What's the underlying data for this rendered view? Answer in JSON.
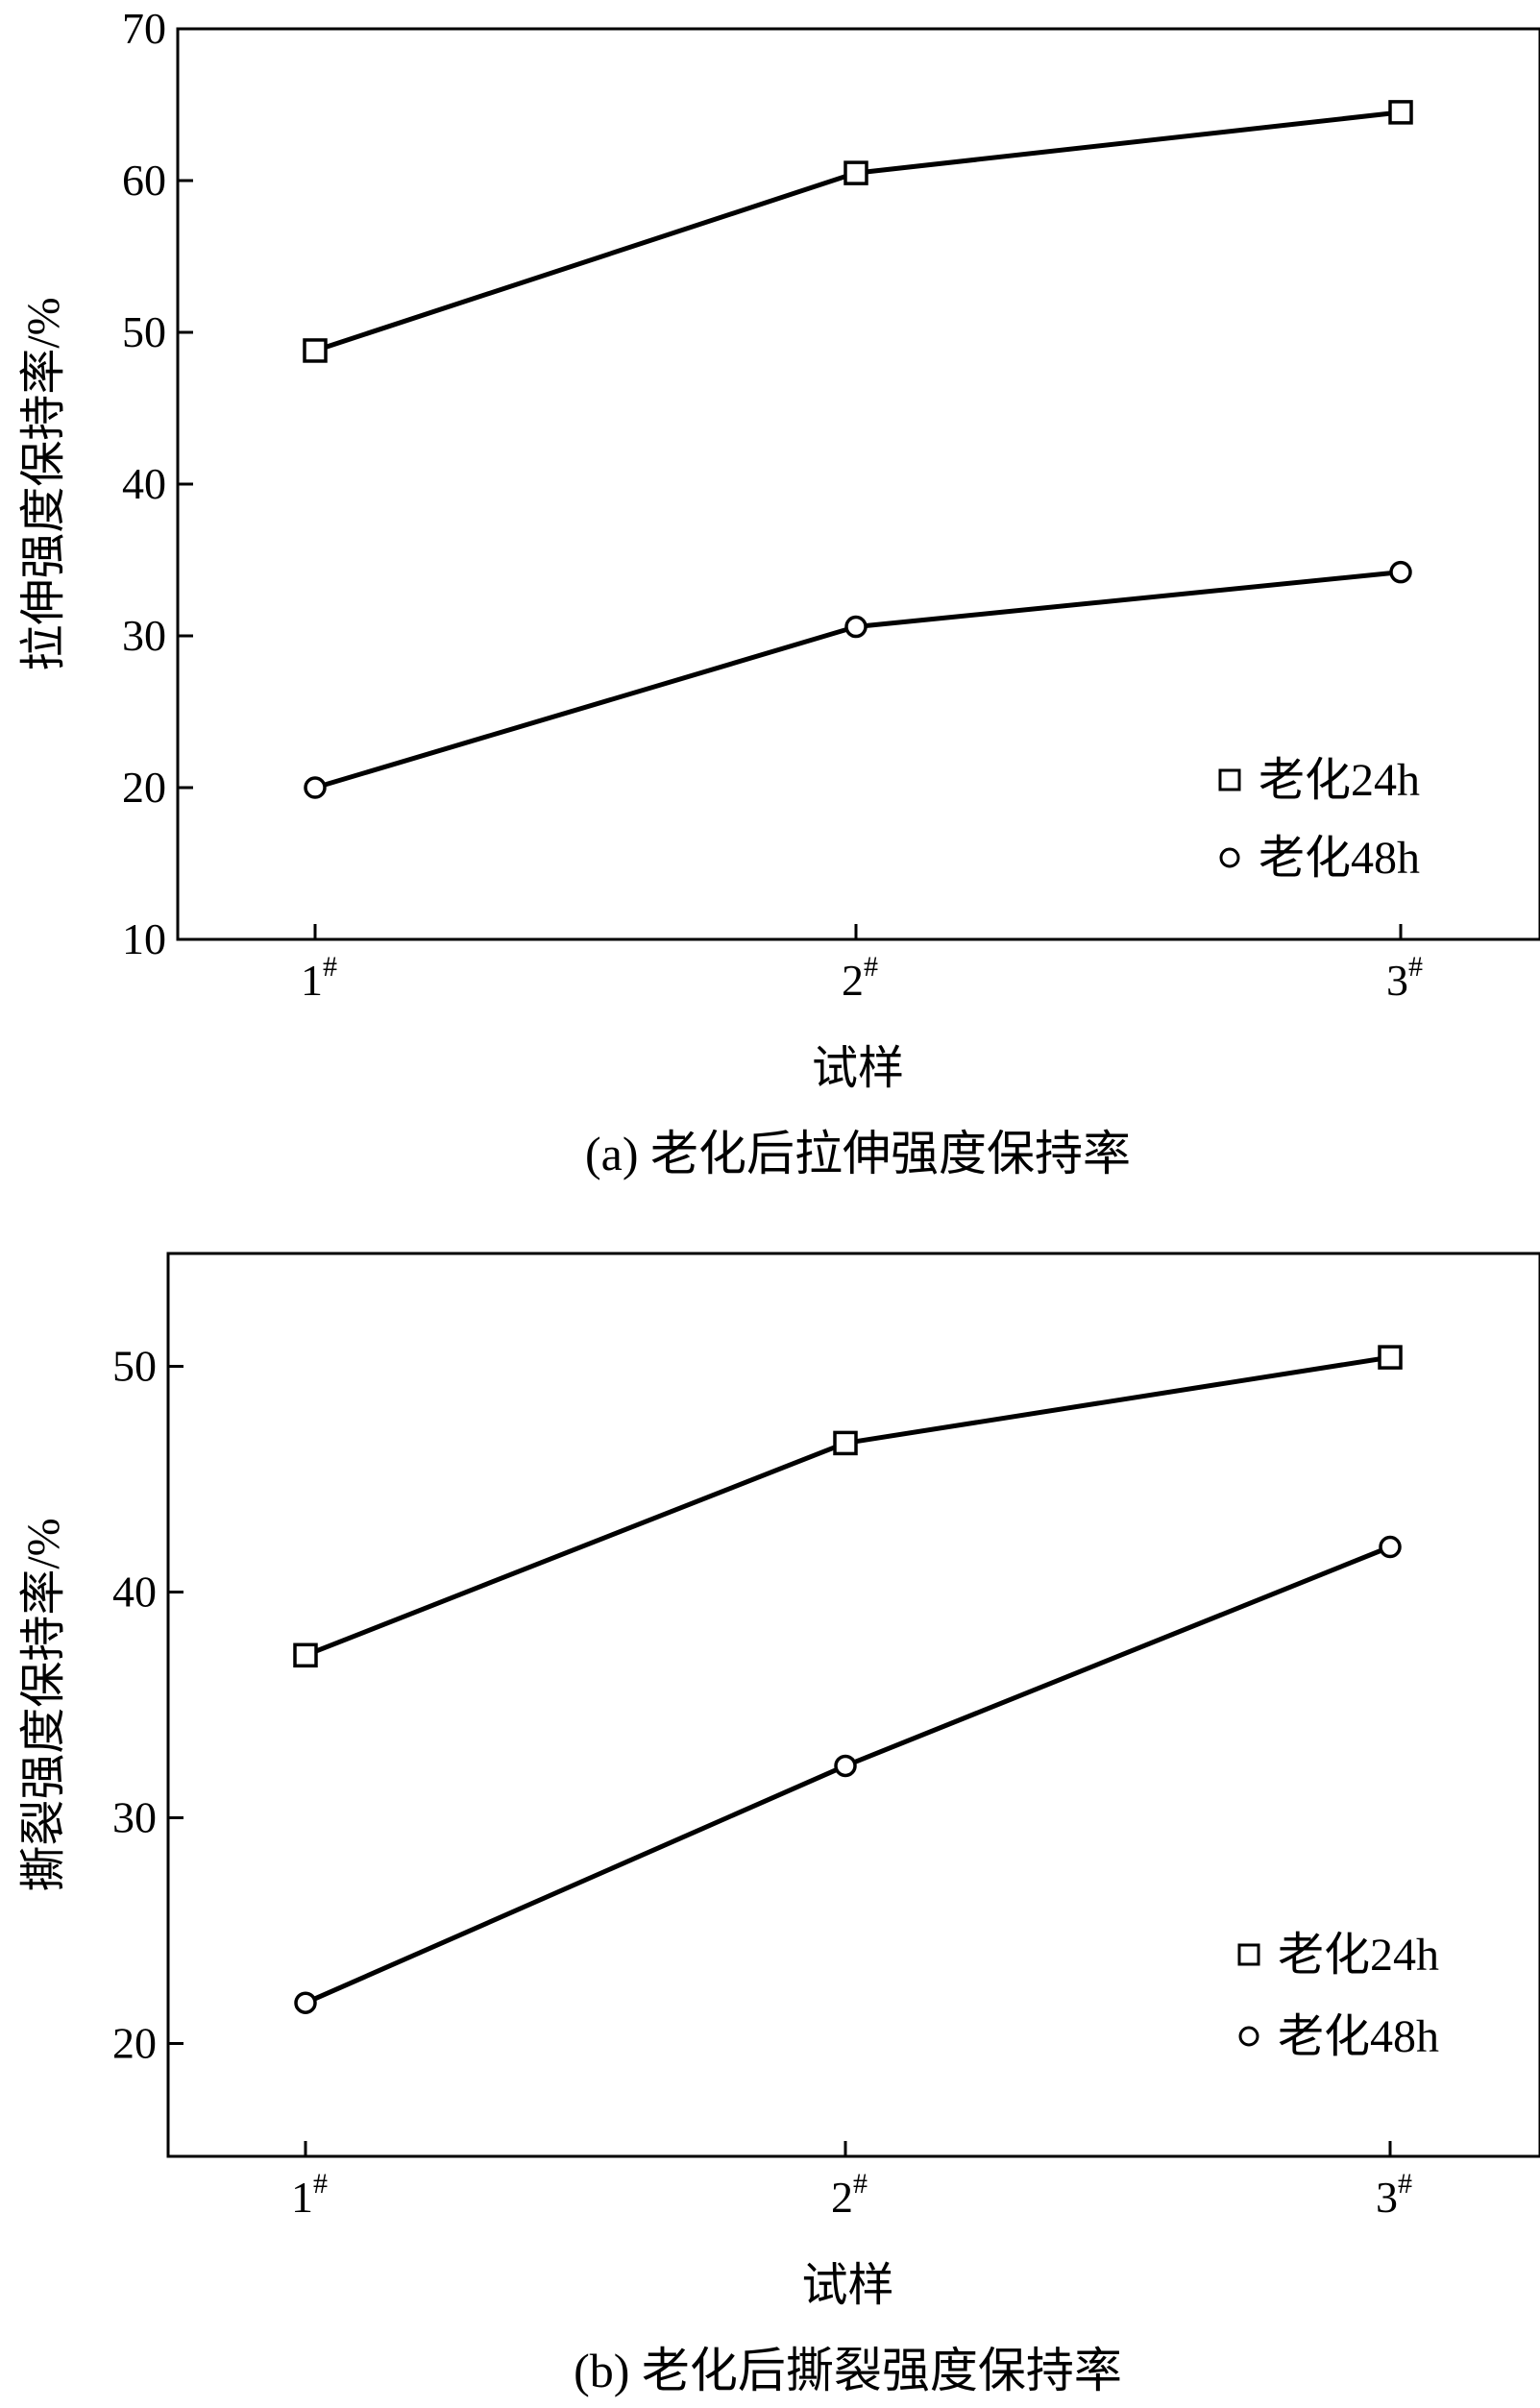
{
  "chart_data": [
    {
      "type": "line",
      "caption": "(a) 老化后拉伸强度保持率",
      "xlabel": "试样",
      "ylabel": "拉伸强度保持率/%",
      "categories": [
        "1#",
        "2#",
        "3#"
      ],
      "ylim": [
        10,
        70
      ],
      "yticks": [
        10,
        20,
        30,
        40,
        50,
        60,
        70
      ],
      "grid": false,
      "legend_position": "bottom-right",
      "series": [
        {
          "name": "老化24h",
          "marker": "square",
          "values": [
            48.8,
            60.5,
            64.5
          ]
        },
        {
          "name": "老化48h",
          "marker": "circle",
          "values": [
            20.0,
            30.6,
            34.2
          ]
        }
      ]
    },
    {
      "type": "line",
      "caption": "(b) 老化后撕裂强度保持率",
      "xlabel": "试样",
      "ylabel": "撕裂强度保持率/%",
      "categories": [
        "1#",
        "2#",
        "3#"
      ],
      "ylim": [
        15,
        55
      ],
      "yticks": [
        20,
        30,
        40,
        50
      ],
      "grid": false,
      "legend_position": "bottom-right",
      "series": [
        {
          "name": "老化24h",
          "marker": "square",
          "values": [
            37.2,
            46.6,
            50.4
          ]
        },
        {
          "name": "老化48h",
          "marker": "circle",
          "values": [
            21.8,
            32.3,
            42.0
          ]
        }
      ]
    }
  ]
}
